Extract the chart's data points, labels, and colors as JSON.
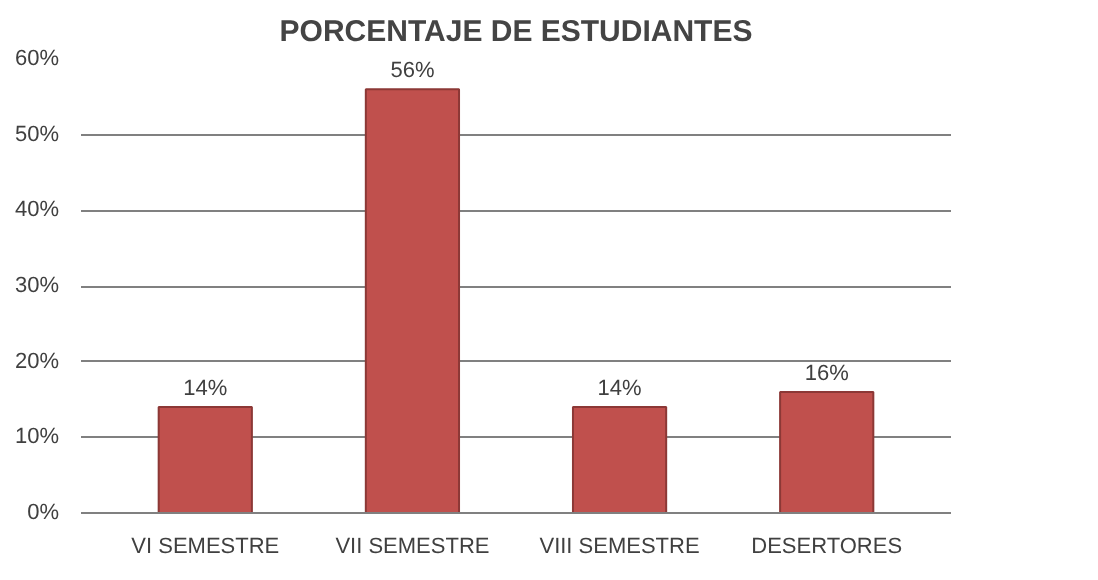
{
  "chart_data": {
    "type": "bar",
    "title": "PORCENTAJE DE ESTUDIANTES",
    "categories": [
      "VI SEMESTRE",
      "VII SEMESTRE",
      "VIII SEMESTRE",
      "DESERTORES"
    ],
    "values": [
      14,
      56,
      14,
      16
    ],
    "value_labels": [
      "14%",
      "56%",
      "14%",
      "16%"
    ],
    "color": "#c0504d",
    "ylim": [
      0,
      60
    ],
    "yticks": [
      {
        "value": 0,
        "label": "0%"
      },
      {
        "value": 10,
        "label": "10%"
      },
      {
        "value": 20,
        "label": "20%"
      },
      {
        "value": 30,
        "label": "30%"
      },
      {
        "value": 40,
        "label": "40%"
      },
      {
        "value": 50,
        "label": "50%"
      },
      {
        "value": 60,
        "label": "60%"
      }
    ],
    "grid": "y"
  }
}
